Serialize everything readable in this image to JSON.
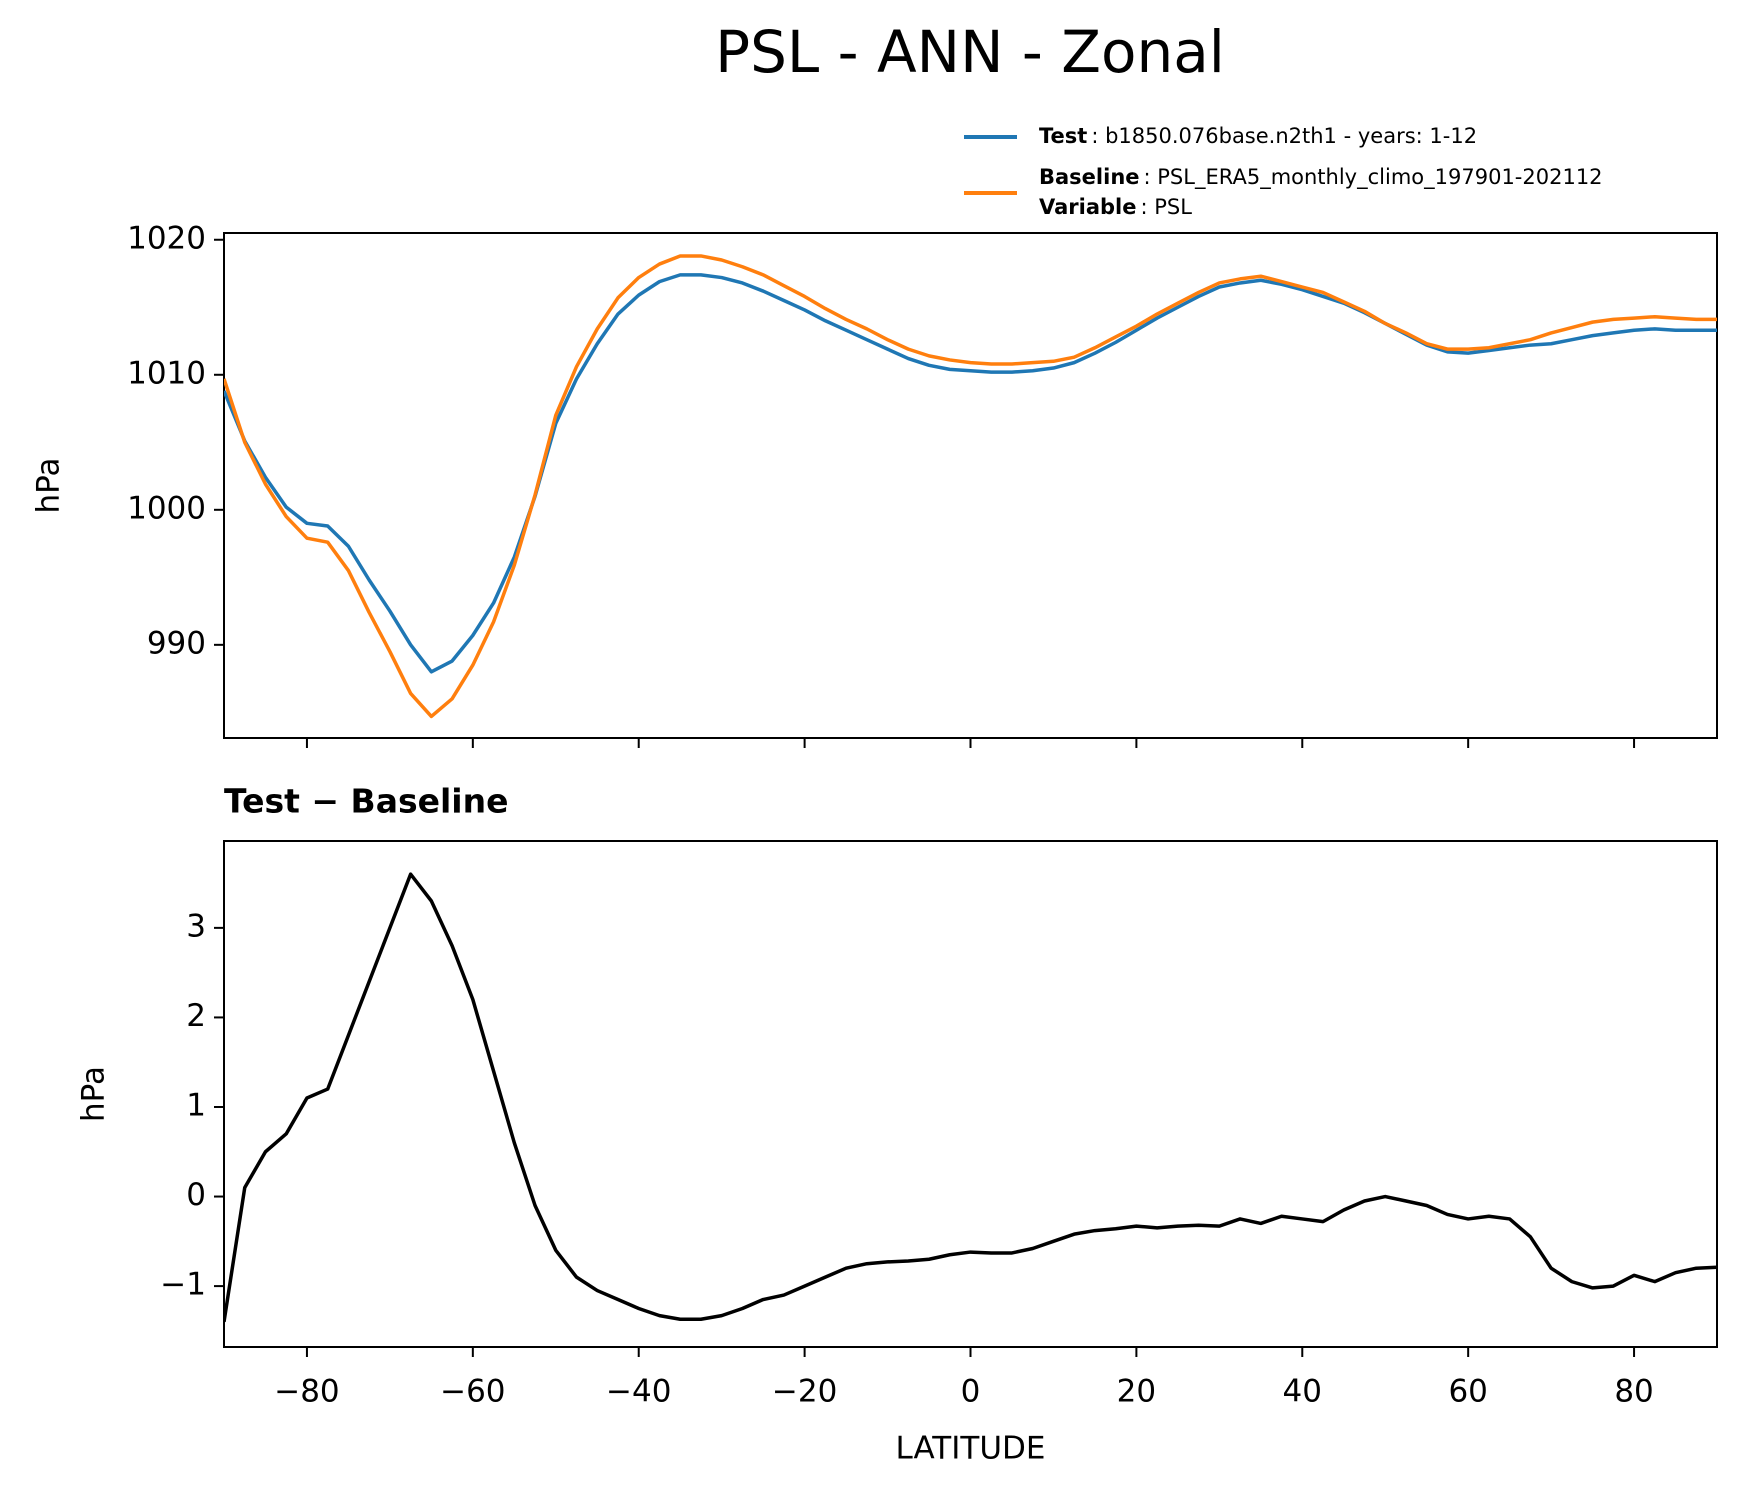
{
  "title": "PSL - ANN - Zonal",
  "chart_data": [
    {
      "type": "line",
      "ylabel": "hPa",
      "x": [
        -90,
        -87.5,
        -85,
        -82.5,
        -80,
        -77.5,
        -75,
        -72.5,
        -70,
        -67.5,
        -65,
        -62.5,
        -60,
        -57.5,
        -55,
        -52.5,
        -50,
        -47.5,
        -45,
        -42.5,
        -40,
        -37.5,
        -35,
        -32.5,
        -30,
        -27.5,
        -25,
        -22.5,
        -20,
        -17.5,
        -15,
        -12.5,
        -10,
        -7.5,
        -5,
        -2.5,
        0,
        2.5,
        5,
        7.5,
        10,
        12.5,
        15,
        17.5,
        20,
        22.5,
        25,
        27.5,
        30,
        32.5,
        35,
        37.5,
        40,
        42.5,
        45,
        47.5,
        50,
        52.5,
        55,
        57.5,
        60,
        62.5,
        65,
        67.5,
        70,
        72.5,
        75,
        77.5,
        80,
        82.5,
        85,
        87.5,
        90
      ],
      "series": [
        {
          "name": "Test",
          "desc": ": b1850.076base.n2th1 - years: 1-12",
          "color": "#1f77b4",
          "values": [
            1008.8,
            1005.1,
            1002.4,
            1000.2,
            999,
            998.8,
            997.3,
            994.8,
            992.5,
            990,
            988,
            988.8,
            990.7,
            993.1,
            996.5,
            1001,
            1006.4,
            1009.7,
            1012.3,
            1014.5,
            1015.9,
            1016.9,
            1017.4,
            1017.4,
            1017.2,
            1016.8,
            1016.2,
            1015.5,
            1014.8,
            1014,
            1013.3,
            1012.6,
            1011.9,
            1011.2,
            1010.7,
            1010.4,
            1010.3,
            1010.2,
            1010.2,
            1010.3,
            1010.5,
            1010.9,
            1011.6,
            1012.4,
            1013.3,
            1014.2,
            1015,
            1015.8,
            1016.5,
            1016.8,
            1017,
            1016.7,
            1016.3,
            1015.8,
            1015.3,
            1014.6,
            1013.8,
            1013,
            1012.2,
            1011.7,
            1011.6,
            1011.8,
            1012,
            1012.2,
            1012.3,
            1012.6,
            1012.9,
            1013.1,
            1013.3,
            1013.4,
            1013.3,
            1013.3,
            1013.3
          ]
        },
        {
          "name": "Baseline",
          "desc": ": PSL_ERA5_monthly_climo_197901-202112",
          "color": "#ff7f0e",
          "values": [
            1009.7,
            1005,
            1001.9,
            999.5,
            997.9,
            997.6,
            995.5,
            992.4,
            989.5,
            986.4,
            984.7,
            986,
            988.5,
            991.7,
            995.9,
            1001.1,
            1007,
            1010.6,
            1013.4,
            1015.7,
            1017.2,
            1018.2,
            1018.8,
            1018.8,
            1018.5,
            1018,
            1017.4,
            1016.6,
            1015.8,
            1014.9,
            1014.1,
            1013.4,
            1012.6,
            1011.9,
            1011.4,
            1011.1,
            1010.9,
            1010.8,
            1010.8,
            1010.9,
            1011,
            1011.3,
            1012,
            1012.8,
            1013.6,
            1014.5,
            1015.3,
            1016.1,
            1016.8,
            1017.1,
            1017.3,
            1016.9,
            1016.5,
            1016.1,
            1015.4,
            1014.7,
            1013.8,
            1013.1,
            1012.3,
            1011.9,
            1011.9,
            1012,
            1012.3,
            1012.6,
            1013.1,
            1013.5,
            1013.9,
            1014.1,
            1014.2,
            1014.3,
            1014.2,
            1014.1,
            1014.1
          ]
        }
      ],
      "variable": {
        "name": "Variable",
        "desc": ": PSL"
      },
      "xlim": [
        -90,
        90
      ],
      "xticks": [
        -80,
        -60,
        -40,
        -20,
        0,
        20,
        40,
        60,
        80
      ],
      "ylim": [
        983.1,
        1020.5
      ],
      "yticks": [
        990,
        1000,
        1010,
        1020
      ]
    },
    {
      "type": "line",
      "title": "Test − Baseline",
      "ylabel": "hPa",
      "xlabel": "LATITUDE",
      "color": "#000000",
      "x": [
        -90,
        -87.5,
        -85,
        -82.5,
        -80,
        -77.5,
        -75,
        -72.5,
        -70,
        -67.5,
        -65,
        -62.5,
        -60,
        -57.5,
        -55,
        -52.5,
        -50,
        -47.5,
        -45,
        -42.5,
        -40,
        -37.5,
        -35,
        -32.5,
        -30,
        -27.5,
        -25,
        -22.5,
        -20,
        -17.5,
        -15,
        -12.5,
        -10,
        -7.5,
        -5,
        -2.5,
        0,
        2.5,
        5,
        7.5,
        10,
        12.5,
        15,
        17.5,
        20,
        22.5,
        25,
        27.5,
        30,
        32.5,
        35,
        37.5,
        40,
        42.5,
        45,
        47.5,
        50,
        52.5,
        55,
        57.5,
        60,
        62.5,
        65,
        67.5,
        70,
        72.5,
        75,
        77.5,
        80,
        82.5,
        85,
        87.5,
        90
      ],
      "values": [
        -1.4,
        0.1,
        0.5,
        0.7,
        1.1,
        1.2,
        1.8,
        2.4,
        3.0,
        3.6,
        3.3,
        2.8,
        2.2,
        1.4,
        0.6,
        -0.1,
        -0.6,
        -0.9,
        -1.05,
        -1.15,
        -1.25,
        -1.33,
        -1.37,
        -1.37,
        -1.33,
        -1.25,
        -1.15,
        -1.1,
        -1.0,
        -0.9,
        -0.8,
        -0.75,
        -0.73,
        -0.72,
        -0.7,
        -0.65,
        -0.62,
        -0.63,
        -0.63,
        -0.58,
        -0.5,
        -0.42,
        -0.38,
        -0.36,
        -0.33,
        -0.35,
        -0.33,
        -0.32,
        -0.33,
        -0.25,
        -0.3,
        -0.22,
        -0.25,
        -0.28,
        -0.15,
        -0.05,
        0.0,
        -0.05,
        -0.1,
        -0.2,
        -0.25,
        -0.22,
        -0.25,
        -0.45,
        -0.8,
        -0.95,
        -1.02,
        -1.0,
        -0.88,
        -0.95,
        -0.85,
        -0.8,
        -0.79
      ],
      "xlim": [
        -90,
        90
      ],
      "xticks": [
        {
          "value": -80,
          "label": "−80"
        },
        {
          "value": -60,
          "label": "−60"
        },
        {
          "value": -40,
          "label": "−40"
        },
        {
          "value": -20,
          "label": "−20"
        },
        0,
        20,
        40,
        60,
        80
      ],
      "ylim": [
        -1.68,
        3.97
      ],
      "yticks": [
        {
          "value": -1,
          "label": "−1"
        },
        0,
        1,
        2,
        3
      ]
    }
  ]
}
